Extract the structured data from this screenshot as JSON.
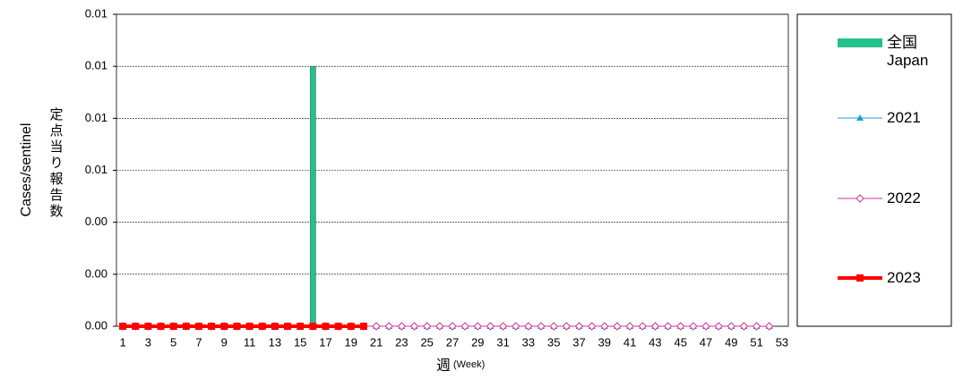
{
  "chart_data": {
    "type": "bar_line",
    "y_label": "Cases/sentinel",
    "y_label_ja": "定点当り報告数",
    "x_label": "週",
    "x_label_sub": "(Week)",
    "categories": [
      "1",
      null,
      "3",
      null,
      "5",
      null,
      "7",
      null,
      "9",
      null,
      "11",
      null,
      "13",
      null,
      "15",
      null,
      "17",
      null,
      "19",
      null,
      "21",
      null,
      "23",
      null,
      "25",
      null,
      "27",
      null,
      "29",
      null,
      "31",
      null,
      "33",
      null,
      "35",
      null,
      "37",
      null,
      "39",
      null,
      "41",
      null,
      "43",
      null,
      "45",
      null,
      "47",
      null,
      "49",
      null,
      "51",
      null,
      "53"
    ],
    "ylim": [
      0,
      0.012
    ],
    "yticks": [
      {
        "value": 0,
        "label": "0.00"
      },
      {
        "value": 0.002,
        "label": "0.00"
      },
      {
        "value": 0.004,
        "label": "0.00"
      },
      {
        "value": 0.006,
        "label": "0.01"
      },
      {
        "value": 0.008,
        "label": "0.01"
      },
      {
        "value": 0.01,
        "label": "0.01"
      },
      {
        "value": 0.012,
        "label": "0.01"
      }
    ],
    "grid": true,
    "series": [
      {
        "name": "全国 Japan",
        "kind": "bar",
        "color": "#22c28a",
        "values": [
          0,
          0,
          0,
          0,
          0,
          0,
          0,
          0,
          0,
          0,
          0,
          0,
          0,
          0,
          0,
          0.01,
          0,
          0,
          0,
          0,
          0,
          0,
          0,
          0,
          0,
          0,
          0,
          0,
          0,
          0,
          0,
          0,
          0,
          0,
          0,
          0,
          0,
          0,
          0,
          0,
          0,
          0,
          0,
          0,
          0,
          0,
          0,
          0,
          0,
          0,
          0,
          0,
          null
        ]
      },
      {
        "name": "2021",
        "kind": "line",
        "marker": "triangle",
        "color": "#1f9fd9",
        "values": [
          0,
          0,
          0,
          0,
          0,
          0,
          0,
          0,
          0,
          0,
          0,
          0,
          0,
          0,
          0,
          0,
          0,
          0,
          0,
          0,
          0,
          0,
          0,
          0,
          0,
          0,
          0,
          0,
          0,
          0,
          0,
          0,
          0,
          0,
          0,
          0,
          0,
          0,
          0,
          0,
          0,
          0,
          0,
          0,
          0,
          0,
          0,
          0,
          0,
          0,
          0,
          0,
          null
        ]
      },
      {
        "name": "2022",
        "kind": "line",
        "marker": "diamond",
        "color": "#cc3399",
        "values": [
          0,
          0,
          0,
          0,
          0,
          0,
          0,
          0,
          0,
          0,
          0,
          0,
          0,
          0,
          0,
          0,
          0,
          0,
          0,
          0,
          0,
          0,
          0,
          0,
          0,
          0,
          0,
          0,
          0,
          0,
          0,
          0,
          0,
          0,
          0,
          0,
          0,
          0,
          0,
          0,
          0,
          0,
          0,
          0,
          0,
          0,
          0,
          0,
          0,
          0,
          0,
          0,
          null
        ]
      },
      {
        "name": "2023",
        "kind": "line",
        "marker": "square",
        "color": "#ff0000",
        "values": [
          0,
          0,
          0,
          0,
          0,
          0,
          0,
          0,
          0,
          0,
          0,
          0,
          0,
          0,
          0,
          0,
          0,
          0,
          0,
          0,
          null,
          null,
          null,
          null,
          null,
          null,
          null,
          null,
          null,
          null,
          null,
          null,
          null,
          null,
          null,
          null,
          null,
          null,
          null,
          null,
          null,
          null,
          null,
          null,
          null,
          null,
          null,
          null,
          null,
          null,
          null,
          null,
          null
        ]
      }
    ]
  }
}
